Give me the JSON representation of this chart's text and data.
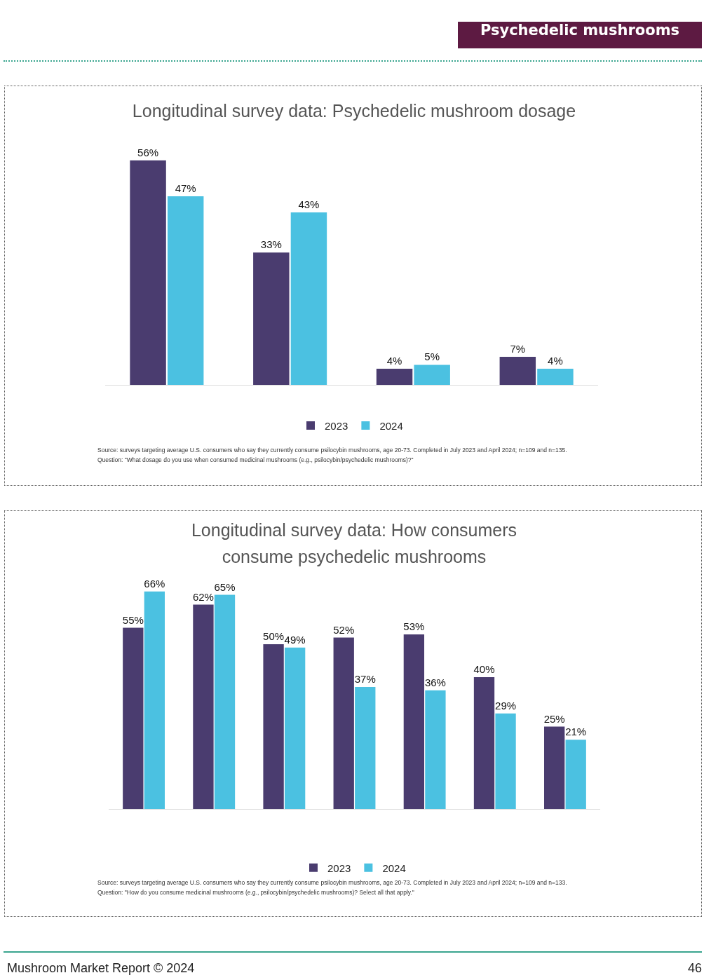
{
  "chart_data": [
    {
      "type": "bar",
      "title": "Longitudinal survey data: Psychedelic mushroom dosage",
      "categories": [
        null,
        null,
        null,
        null
      ],
      "series": [
        {
          "name": "2023",
          "color": "#4a3c6f",
          "values": [
            56,
            33,
            4,
            7
          ],
          "value_labels": [
            "56%",
            "33%",
            "4%",
            "7%"
          ]
        },
        {
          "name": "2024",
          "color": "#4bc1e1",
          "values": [
            47,
            43,
            5,
            4
          ],
          "value_labels": [
            "47%",
            "43%",
            "5%",
            "4%"
          ]
        }
      ],
      "legend": "bottom",
      "annotations": [
        "Source: surveys targeting average U.S. consumers who say they currently consume psilocybin mushrooms, age 20-73. Completed in July 2023 and April 2024; n=109 and n=135.",
        "Question: \"What dosage do you use when consumed medicinal mushrooms (e.g., psilocybin/psychedelic mushrooms)?\""
      ]
    },
    {
      "type": "bar",
      "title": "Longitudinal survey data: How consumers consume psychedelic mushrooms",
      "categories": [
        null,
        null,
        null,
        null,
        null,
        null,
        null
      ],
      "series": [
        {
          "name": "2023",
          "color": "#4a3c6f",
          "values": [
            55,
            62,
            50,
            52,
            53,
            40,
            25
          ],
          "value_labels": [
            "55%",
            "62%",
            "50%",
            "52%",
            "53%",
            "40%",
            "25%"
          ]
        },
        {
          "name": "2024",
          "color": "#4bc1e1",
          "values": [
            66,
            65,
            49,
            37,
            36,
            29,
            21
          ],
          "value_labels": [
            "66%",
            "65%",
            "49%",
            "37%",
            "36%",
            "29%",
            "21%"
          ]
        }
      ],
      "legend": "bottom",
      "annotations": [
        "Source: surveys targeting average U.S. consumers who say they currently consume psilocybin mushrooms, age 20-73. Completed in July 2023 and April 2024; n=109 and n=133.",
        "Question: \"How do you consume medicinal mushrooms (e.g., psilocybin/psychedelic mushrooms)? Select all that apply.\""
      ]
    },
    {
      "type": "other",
      "title": "Psychedelic mushrooms",
      "annotations": [
        "Mushroom Market Report © 2024",
        "46"
      ]
    }
  ]
}
